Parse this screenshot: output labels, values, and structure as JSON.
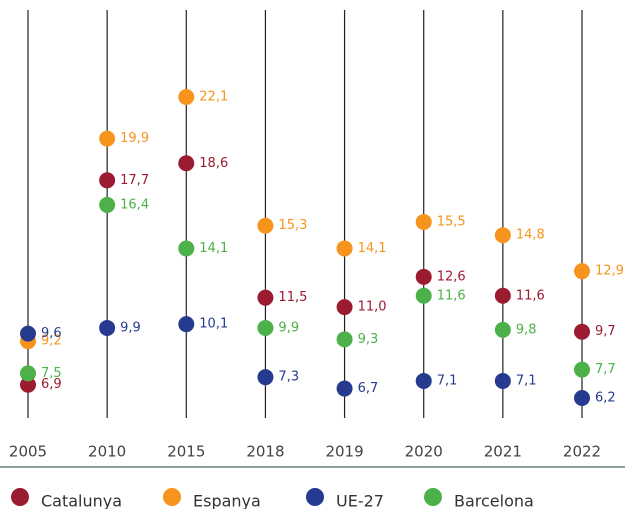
{
  "chart_data": {
    "type": "dot",
    "categories": [
      "2005",
      "2010",
      "2015",
      "2018",
      "2019",
      "2020",
      "2021",
      "2022"
    ],
    "series": [
      {
        "name": "Catalunya",
        "color": "#9b1b30",
        "values": [
          6.9,
          17.7,
          18.6,
          11.5,
          11.0,
          12.6,
          11.6,
          9.7
        ],
        "value_labels": [
          "6,9",
          "17,7",
          "18,6",
          "11,5",
          "11,0",
          "12,6",
          "11,6",
          "9,7"
        ]
      },
      {
        "name": "Espanya",
        "color": "#f7941d",
        "values": [
          9.2,
          19.9,
          22.1,
          15.3,
          14.1,
          15.5,
          14.8,
          12.9
        ],
        "value_labels": [
          "9,2",
          "19,9",
          "22,1",
          "15,3",
          "14,1",
          "15,5",
          "14,8",
          "12,9"
        ]
      },
      {
        "name": "UE-27",
        "color": "#263b8f",
        "values": [
          9.6,
          9.9,
          10.1,
          7.3,
          6.7,
          7.1,
          7.1,
          6.2
        ],
        "value_labels": [
          "9,6",
          "9,9",
          "10,1",
          "7,3",
          "6,7",
          "7,1",
          "7,1",
          "6,2"
        ]
      },
      {
        "name": "Barcelona",
        "color": "#4cb148",
        "values": [
          7.5,
          16.4,
          14.1,
          9.9,
          9.3,
          11.6,
          9.8,
          7.7
        ],
        "value_labels": [
          "7,5",
          "16,4",
          "14,1",
          "9,9",
          "9,3",
          "11,6",
          "9,8",
          "7,7"
        ]
      }
    ]
  }
}
